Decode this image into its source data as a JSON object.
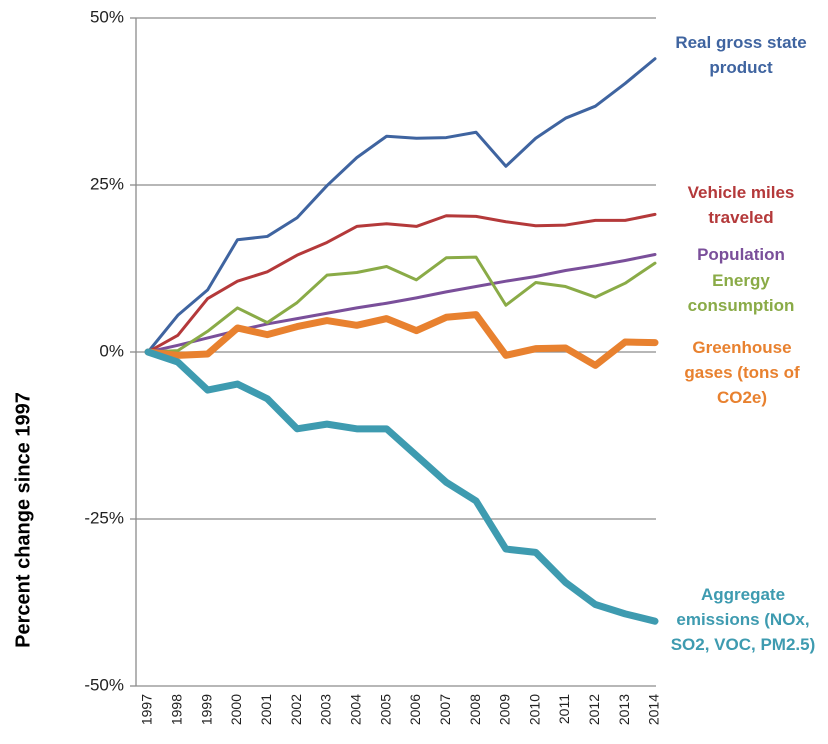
{
  "chart_data": {
    "type": "line",
    "y_label": "Percent change since 1997",
    "categories": [
      "1997",
      "1998",
      "1999",
      "2000",
      "2001",
      "2002",
      "2003",
      "2004",
      "2005",
      "2006",
      "2007",
      "2008",
      "2009",
      "2010",
      "2011",
      "2012",
      "2013",
      "2014"
    ],
    "ylim": [
      -50,
      50
    ],
    "yticks": [
      {
        "value": 50,
        "label": "50%"
      },
      {
        "value": 25,
        "label": "25%"
      },
      {
        "value": 0,
        "label": "0%"
      },
      {
        "value": -25,
        "label": "-25%"
      },
      {
        "value": -50,
        "label": "-50%"
      }
    ],
    "grid": true,
    "series": [
      {
        "name": "Real gross state product",
        "color": "#3f64a0",
        "values": [
          0,
          5.5,
          9.3,
          16.8,
          17.3,
          20.1,
          24.9,
          29.1,
          32.3,
          32.0,
          32.1,
          32.9,
          27.8,
          32.0,
          35.0,
          36.8,
          40.2,
          43.9
        ]
      },
      {
        "name": "Vehicle miles traveled",
        "color": "#b4393a",
        "values": [
          0,
          2.5,
          8.0,
          10.6,
          12.0,
          14.5,
          16.4,
          18.8,
          19.2,
          18.8,
          20.4,
          20.3,
          19.5,
          18.9,
          19.0,
          19.7,
          19.7,
          20.6
        ]
      },
      {
        "name": "Population",
        "color": "#7a4f9a",
        "values": [
          0,
          1.0,
          2.1,
          3.2,
          4.2,
          5.0,
          5.8,
          6.6,
          7.3,
          8.1,
          9.0,
          9.8,
          10.6,
          11.3,
          12.2,
          12.9,
          13.7,
          14.6
        ]
      },
      {
        "name": "Energy consumption",
        "color": "#8aab47",
        "values": [
          0,
          0.2,
          3.1,
          6.6,
          4.4,
          7.4,
          11.5,
          11.9,
          12.8,
          10.8,
          14.1,
          14.2,
          7.0,
          10.4,
          9.8,
          8.2,
          10.3,
          13.3
        ]
      },
      {
        "name": "Greenhouse gases (tons of CO2e)",
        "color": "#e8812f",
        "values": [
          0,
          -0.5,
          -0.3,
          3.6,
          2.6,
          3.8,
          4.7,
          4.0,
          5.0,
          3.2,
          5.2,
          5.6,
          -0.5,
          0.5,
          0.6,
          -2.0,
          1.5,
          1.4
        ]
      },
      {
        "name": "Aggregate emissions (NOx, SO2, VOC, PM2.5)",
        "color": "#3e9bb0",
        "values": [
          0,
          -1.5,
          -5.7,
          -4.8,
          -7.0,
          -11.5,
          -10.8,
          -11.5,
          -11.5,
          -15.5,
          -19.5,
          -22.3,
          -29.5,
          -30.0,
          -34.5,
          -37.8,
          -39.2,
          -40.3
        ]
      }
    ]
  }
}
